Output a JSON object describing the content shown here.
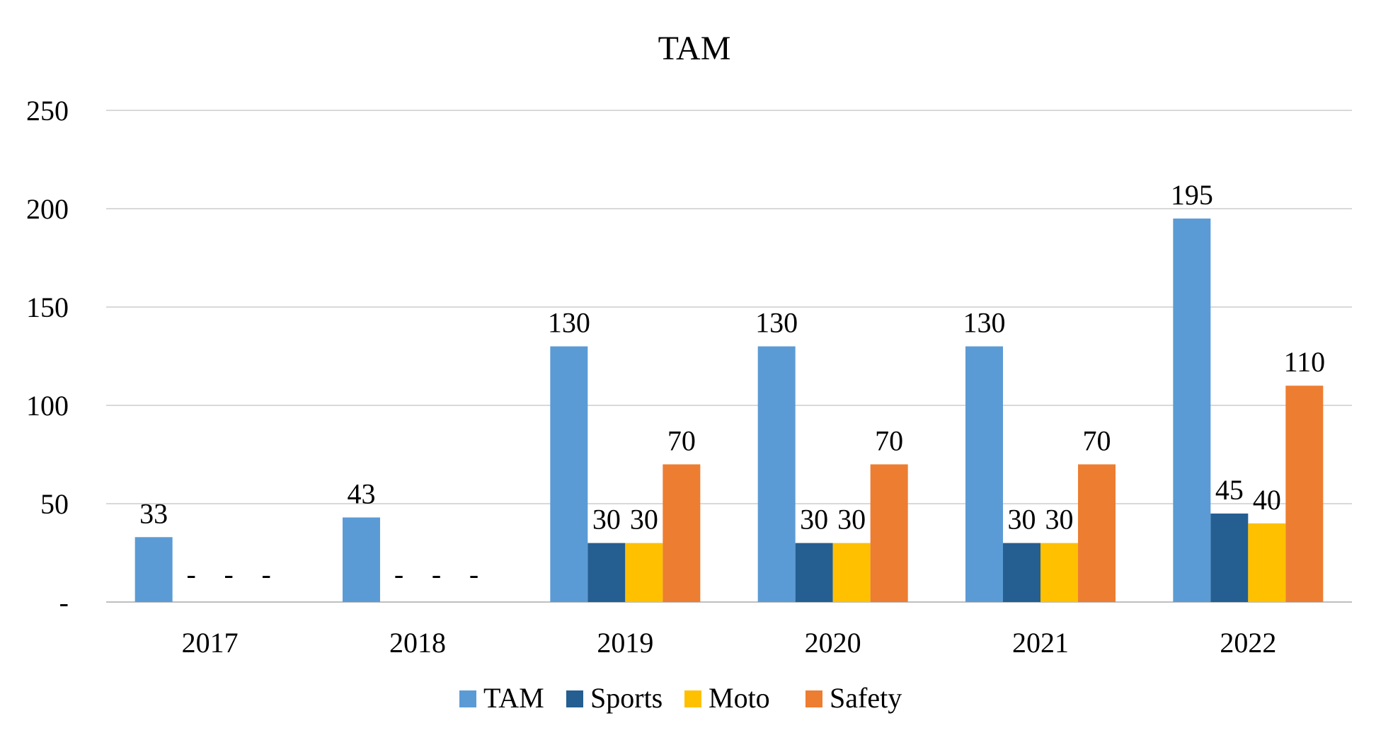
{
  "chart_data": {
    "type": "bar",
    "title": "TAM",
    "xlabel": "",
    "ylabel": "",
    "categories": [
      "2017",
      "2018",
      "2019",
      "2020",
      "2021",
      "2022"
    ],
    "series": [
      {
        "name": "TAM",
        "color": "#5B9BD5",
        "values": [
          33,
          43,
          130,
          130,
          130,
          195
        ]
      },
      {
        "name": "Sports",
        "color": "#255E91",
        "values": [
          0,
          0,
          30,
          30,
          30,
          45
        ]
      },
      {
        "name": "Moto",
        "color": "#FFC000",
        "values": [
          0,
          0,
          30,
          30,
          30,
          40
        ]
      },
      {
        "name": "Safety",
        "color": "#ED7D31",
        "values": [
          0,
          0,
          70,
          70,
          70,
          110
        ]
      }
    ],
    "ylim": [
      0,
      250
    ],
    "yticks": [
      0,
      50,
      100,
      150,
      200,
      250
    ],
    "ytick_labels": [
      "-",
      "50",
      "100",
      "150",
      "200",
      "250"
    ],
    "zero_label": "-",
    "grid": true,
    "legend_position": "bottom"
  }
}
